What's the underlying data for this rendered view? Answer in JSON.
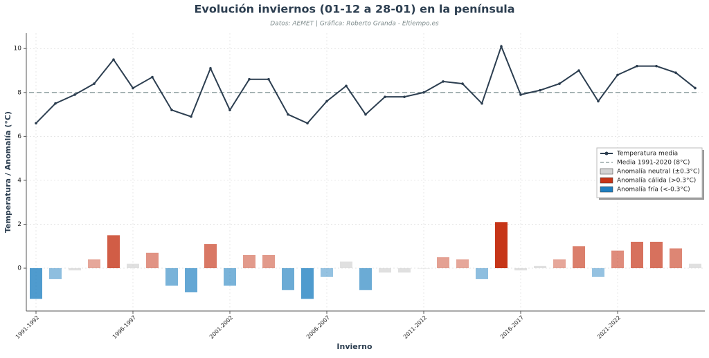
{
  "chart_data": {
    "type": "line-bar",
    "title": "Evolución inviernos (01-12 a 28-01) en la península",
    "subtitle": "Datos: AEMET | Gráfica: Roberto Granda - Eltiempo.es",
    "x_label": "Invierno",
    "y_label": "Temperatura / Anomalía (°C)",
    "categories": [
      "1991-1992",
      null,
      null,
      null,
      null,
      "1996-1997",
      null,
      null,
      null,
      null,
      "2001-2002",
      null,
      null,
      null,
      null,
      "2006-2007",
      null,
      null,
      null,
      null,
      "2011-2012",
      null,
      null,
      null,
      null,
      "2016-2017",
      null,
      null,
      null,
      null,
      "2021-2022",
      null,
      null,
      null,
      null
    ],
    "series": [
      {
        "name": "Temperatura media",
        "color": "#2c3e50",
        "values": [
          6.6,
          7.5,
          7.9,
          8.4,
          9.5,
          8.2,
          8.7,
          7.2,
          6.9,
          9.1,
          7.2,
          8.6,
          8.6,
          7.0,
          6.6,
          7.6,
          8.3,
          7.0,
          7.8,
          7.8,
          8.0,
          8.5,
          8.4,
          7.5,
          10.1,
          7.9,
          8.1,
          8.4,
          9.0,
          7.6,
          8.8,
          9.2,
          9.2,
          8.9,
          8.2
        ]
      }
    ],
    "anomalies": {
      "values": [
        -1.4,
        -0.5,
        -0.1,
        0.4,
        1.5,
        0.2,
        0.7,
        -0.8,
        -1.1,
        1.1,
        -0.8,
        0.6,
        0.6,
        -1.0,
        -1.4,
        -0.4,
        0.3,
        -1.0,
        -0.2,
        -0.2,
        0.0,
        0.5,
        0.4,
        -0.5,
        2.1,
        -0.1,
        0.1,
        0.4,
        1.0,
        -0.4,
        0.8,
        1.2,
        1.2,
        0.9,
        0.2
      ],
      "threshold": 0.3
    },
    "reference_line": {
      "value": 8,
      "label": "Media 1991-2020 (8°C)",
      "color": "#95a5a6"
    },
    "anomaly_legend": [
      {
        "label": "Anomalía neutral (±0.3°C)",
        "color": "#d3d3d3"
      },
      {
        "label": "Anomalía cálida (>0.3°C)",
        "color": "#c63518"
      },
      {
        "label": "Anomalía fría (<-0.3°C)",
        "color": "#1f7fc0"
      }
    ],
    "ylim": [
      -1.95,
      10.7
    ],
    "yticks": [
      0,
      2,
      4,
      6,
      8,
      10
    ],
    "grid": true,
    "legend": "right"
  }
}
